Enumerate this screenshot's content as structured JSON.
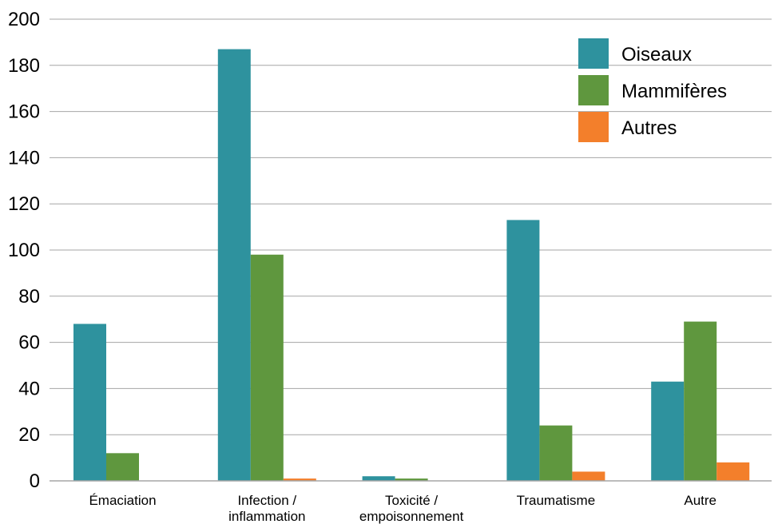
{
  "chart_data": {
    "type": "bar",
    "categories": [
      [
        "Émaciation"
      ],
      [
        "Infection /",
        "inflammation"
      ],
      [
        "Toxicité /",
        "empoisonnement"
      ],
      [
        "Traumatisme"
      ],
      [
        "Autre"
      ]
    ],
    "series": [
      {
        "name": "Oiseaux",
        "color": "#2e929e",
        "values": [
          68,
          187,
          2,
          113,
          43
        ]
      },
      {
        "name": "Mammifères",
        "color": "#5f973e",
        "values": [
          12,
          98,
          1,
          24,
          69
        ]
      },
      {
        "name": "Autres",
        "color": "#f37f2b",
        "values": [
          0,
          1,
          0,
          4,
          8
        ]
      }
    ],
    "title": "",
    "xlabel": "",
    "ylabel": "",
    "ylim": [
      0,
      200
    ],
    "yticks": [
      0,
      20,
      40,
      60,
      80,
      100,
      120,
      140,
      160,
      180,
      200
    ],
    "grid": true,
    "legend_position": "top-right"
  }
}
